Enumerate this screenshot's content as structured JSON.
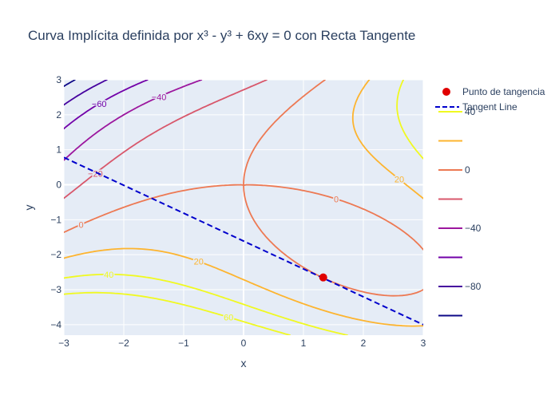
{
  "chart_data": {
    "type": "contour",
    "title": "Curva Implícita definida por x³ - y³ + 6xy = 0 con Recta Tangente",
    "xlabel": "x",
    "ylabel": "y",
    "xlim": [
      -3,
      3
    ],
    "ylim": [
      -4.3,
      3
    ],
    "x_ticks": [
      "−3",
      "−2",
      "−1",
      "0",
      "1",
      "2",
      "3"
    ],
    "y_ticks": [
      "−4",
      "−3",
      "−2",
      "−1",
      "0",
      "1",
      "2",
      "3"
    ],
    "grid": true,
    "function": "x^3 - y^3 + 6xy",
    "contour_levels": [
      -100,
      -80,
      -60,
      -40,
      -20,
      0,
      20,
      40,
      60
    ],
    "contour_labels_shown": [
      "−60",
      "−40",
      "−20",
      "0",
      "0",
      "20",
      "20",
      "40",
      "60"
    ],
    "colorscale": [
      {
        "value": -100,
        "color": "#0d0887"
      },
      {
        "value": -80,
        "color": "#46039f"
      },
      {
        "value": -60,
        "color": "#7201a8"
      },
      {
        "value": -40,
        "color": "#9c179e"
      },
      {
        "value": -20,
        "color": "#d8576b"
      },
      {
        "value": 0,
        "color": "#ed7953"
      },
      {
        "value": 20,
        "color": "#fdb42f"
      },
      {
        "value": 40,
        "color": "#f0f921"
      },
      {
        "value": 60,
        "color": "#f0f921"
      }
    ],
    "colorbar": {
      "tick_labels": [
        "40",
        "0",
        "−40",
        "−80"
      ],
      "swatch_colors": [
        "#f0f921",
        "#fdb42f",
        "#ed7953",
        "#d8576b",
        "#9c179e",
        "#7201a8",
        "#46039f",
        "#0d0887"
      ]
    },
    "series": [
      {
        "name": "Punto de tangencia",
        "type": "scatter",
        "x": [
          1.33
        ],
        "y": [
          -2.65
        ],
        "color": "#e00000"
      },
      {
        "name": "Tangent Line",
        "type": "line",
        "dash": "dash",
        "x": [
          -3,
          3
        ],
        "y": [
          0.78,
          -4.0
        ],
        "color": "#0000cc"
      }
    ],
    "legend": {
      "position": "top-right"
    }
  }
}
